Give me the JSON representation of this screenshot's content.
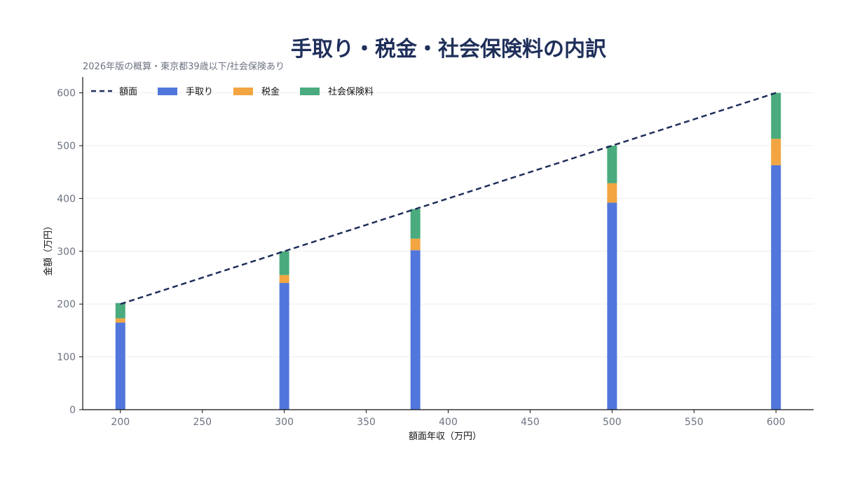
{
  "chart_data": {
    "type": "bar",
    "title": "手取り・税金・社会保険料の内訳",
    "subtitle": "2026年版の概算・東京都39歳以下/社会保険あり",
    "xlabel": "額面年収（万円）",
    "ylabel": "金額（万円）",
    "xlim": [
      177,
      623
    ],
    "ylim": [
      0,
      630
    ],
    "xticks": [
      200,
      250,
      300,
      350,
      400,
      450,
      500,
      550,
      600
    ],
    "yticks": [
      0,
      100,
      200,
      300,
      400,
      500,
      600
    ],
    "grid": "horizontal",
    "legend_position": "top-left",
    "x": [
      200,
      300,
      380,
      500,
      600
    ],
    "series": [
      {
        "name": "手取り",
        "color": "#5177dc",
        "values": [
          165,
          240,
          302,
          392,
          463
        ]
      },
      {
        "name": "税金",
        "color": "#f2a541",
        "values": [
          8,
          15,
          22,
          37,
          50
        ]
      },
      {
        "name": "社会保険料",
        "color": "#4aab7e",
        "values": [
          29,
          45,
          56,
          71,
          87
        ]
      }
    ],
    "line": {
      "name": "額面",
      "color": "#1f2f5a",
      "style": "dashed",
      "x": [
        200,
        600
      ],
      "y": [
        200,
        600
      ]
    }
  }
}
